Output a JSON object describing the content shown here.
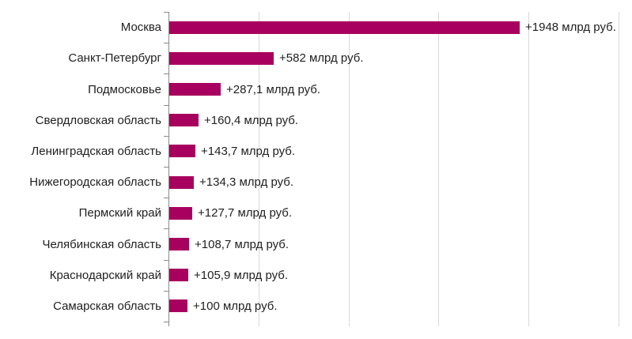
{
  "chart_data": {
    "type": "bar",
    "orientation": "horizontal",
    "title": "",
    "xlabel": "",
    "ylabel": "",
    "unit": "млрд руб.",
    "categories": [
      "Москва",
      "Санкт-Петербург",
      "Подмосковье",
      "Свердловская область",
      "Ленинградская область",
      "Нижегородская область",
      "Пермский край",
      "Челябинская область",
      "Краснодарский край",
      "Самарская область"
    ],
    "values": [
      1948,
      582,
      287.1,
      160.4,
      143.7,
      134.3,
      127.7,
      108.7,
      105.9,
      100
    ],
    "value_labels": [
      "+1948 млрд руб.",
      "+582 млрд руб.",
      "+287,1 млрд руб.",
      "+160,4 млрд руб.",
      "+143,7 млрд руб.",
      "+134,3 млрд руб.",
      "+127,7 млрд руб.",
      "+108,7 млрд руб.",
      "+105,9 млрд руб.",
      "+100 млрд руб."
    ],
    "xlim": [
      0,
      2570
    ],
    "gridline_values": [
      500,
      1000,
      1500,
      2000,
      2500
    ],
    "grid": true,
    "legend": "none",
    "bar_color": "#a8005e",
    "axis_color": "#898989",
    "gridline_color": "#d9d9d9",
    "label_color": "#1f1f1f"
  }
}
